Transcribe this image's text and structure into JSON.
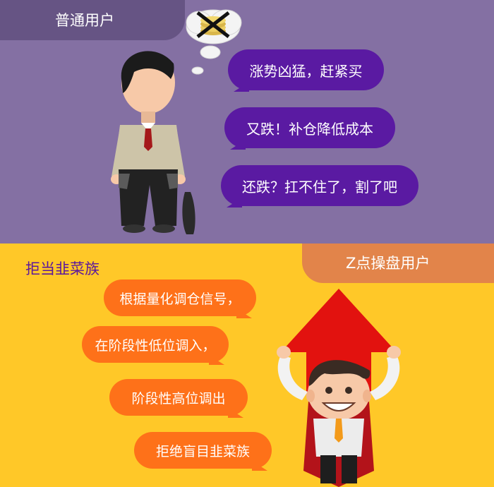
{
  "top": {
    "tab_label": "普通用户",
    "bubbles": [
      "涨势凶猛，赶紧买",
      "又跌！补仓降低成本",
      "还跌？扛不住了，割了吧"
    ]
  },
  "bottom": {
    "title": "拒当韭菜族",
    "tab_label": "Z点操盘用户",
    "bubbles": [
      "根据量化调仓信号，",
      "在阶段性低位调入，",
      "阶段性高位调出",
      "拒绝盲目韭菜族"
    ]
  },
  "colors": {
    "top_bg": "#8470a3",
    "top_tab": "#665484",
    "purple_bubble": "#5a1aa2",
    "bottom_bg": "#ffc828",
    "bottom_tab": "#e2844a",
    "orange_bubble": "#fe7119",
    "title_purple": "#5b179c",
    "arrow_red": "#e2120f"
  },
  "icons": {
    "sad_man": "broke-man-empty-pockets-illustration",
    "thought": "crossed-out-coins-thought-bubble",
    "happy_man": "superhero-man-lifting-red-arrow-illustration"
  }
}
